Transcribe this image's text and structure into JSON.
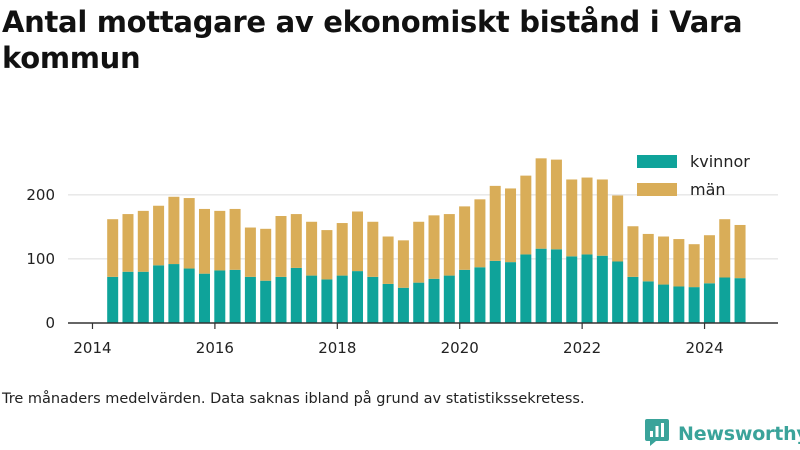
{
  "title": "Antal mottagare av ekonomiskt bistånd i Vara kommun",
  "footnote": "Tre månaders medelvärden. Data saknas ibland på grund av statistikssekretess.",
  "brand": {
    "name": "Newsworthy",
    "color": "#3aa39a",
    "icon": "newsworthy-logo-icon"
  },
  "chart_data": {
    "type": "bar",
    "stacked": true,
    "title": "Antal mottagare av ekonomiskt bistånd i Vara kommun",
    "xlabel": "",
    "ylabel": "",
    "ylim": [
      0,
      270
    ],
    "yticks": [
      0,
      100,
      200
    ],
    "xlim": [
      2013.6,
      2025.2
    ],
    "xticks": [
      2014,
      2016,
      2018,
      2020,
      2022,
      2024
    ],
    "grid": true,
    "legend_position": "top-right",
    "x": [
      2014.33,
      2014.58,
      2014.83,
      2015.08,
      2015.33,
      2015.58,
      2015.83,
      2016.08,
      2016.33,
      2016.58,
      2016.83,
      2017.08,
      2017.33,
      2017.58,
      2017.83,
      2018.08,
      2018.33,
      2018.58,
      2018.83,
      2019.08,
      2019.33,
      2019.58,
      2019.83,
      2020.08,
      2020.33,
      2020.58,
      2020.83,
      2021.08,
      2021.33,
      2021.58,
      2021.83,
      2022.08,
      2022.33,
      2022.58,
      2022.83,
      2023.08,
      2023.33,
      2023.58,
      2023.83,
      2024.08,
      2024.33,
      2024.58
    ],
    "series": [
      {
        "name": "kvinnor",
        "color": "#0fa39a",
        "values": [
          72,
          80,
          80,
          90,
          92,
          85,
          77,
          82,
          83,
          72,
          66,
          72,
          86,
          74,
          68,
          74,
          81,
          72,
          61,
          55,
          63,
          69,
          74,
          83,
          87,
          97,
          95,
          107,
          116,
          115,
          104,
          107,
          105,
          96,
          72,
          65,
          60,
          57,
          56,
          62,
          71,
          70
        ]
      },
      {
        "name": "män",
        "color": "#d9ad58",
        "values": [
          90,
          90,
          95,
          93,
          105,
          110,
          101,
          93,
          95,
          77,
          81,
          95,
          84,
          84,
          77,
          82,
          93,
          86,
          74,
          74,
          95,
          99,
          96,
          99,
          106,
          117,
          115,
          123,
          141,
          140,
          120,
          120,
          119,
          103,
          79,
          74,
          75,
          74,
          67,
          75,
          91,
          83
        ]
      }
    ]
  }
}
